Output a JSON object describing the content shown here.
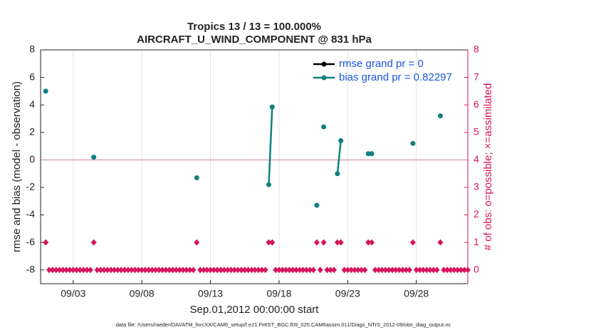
{
  "chart_data": {
    "type": "line",
    "title": "Tropics 13 / 13 = 100.000%",
    "subtitle": "AIRCRAFT_U_WIND_COMPONENT @ 831 hPa",
    "xlabel": "Sep.01,2012 00:00:00 start",
    "ylabel": "rmse and bias (model - observation)",
    "y2label": "# of obs: o=possible; ×=assimilated",
    "footnote": "data file: /Users/raeder/DAI/ATM_forcXX/CAM6_setup/f.e21.FHIST_BGC.f09_025.CAM6assim.011/Diags_NTrS_2012-09/obs_diag_output.nc",
    "xlim": [
      -0.375,
      30.75
    ],
    "xticks": [
      {
        "value": 2,
        "label": "09/03"
      },
      {
        "value": 7,
        "label": "09/08"
      },
      {
        "value": 12,
        "label": "09/13"
      },
      {
        "value": 17,
        "label": "09/18"
      },
      {
        "value": 22,
        "label": "09/23"
      },
      {
        "value": 27,
        "label": "09/28"
      }
    ],
    "ylim": [
      -9,
      8
    ],
    "yticks": [
      -8,
      -6,
      -4,
      -2,
      0,
      2,
      4,
      6,
      8
    ],
    "y2lim": [
      -0.5,
      8
    ],
    "y2ticks": [
      0,
      1,
      2,
      3,
      4,
      5,
      6,
      7,
      8
    ],
    "legend": "upper right",
    "series": [
      {
        "name": "rmse grand pr = 0",
        "color": "#000000",
        "x": [],
        "values": []
      },
      {
        "name": "bias grand pr = 0.82297",
        "color": "#0f8080",
        "x": [
          0,
          3.5,
          11,
          16.25,
          16.5,
          19.75,
          20.25,
          21.25,
          21.5,
          23.5,
          23.75,
          26.75,
          28.75
        ],
        "values": [
          5.0,
          0.2,
          -1.3,
          -1.8,
          3.85,
          -3.3,
          2.4,
          -1.0,
          1.4,
          0.45,
          0.45,
          1.2,
          3.2
        ]
      },
      {
        "color": "#d6155c",
        "axis": "y2",
        "x": [
          0,
          0.25,
          0.5,
          0.75,
          1,
          1.25,
          1.5,
          1.75,
          2,
          2.25,
          2.5,
          2.75,
          3,
          3.25,
          3.5,
          3.75,
          4,
          4.25,
          4.5,
          4.75,
          5,
          5.25,
          5.5,
          5.75,
          6,
          6.25,
          6.5,
          6.75,
          7,
          7.25,
          7.5,
          7.75,
          8,
          8.25,
          8.5,
          8.75,
          9,
          9.25,
          9.5,
          9.75,
          10,
          10.25,
          10.5,
          10.75,
          11,
          11.25,
          11.5,
          11.75,
          12,
          12.25,
          12.5,
          12.75,
          13,
          13.25,
          13.5,
          13.75,
          14,
          14.25,
          14.5,
          14.75,
          15,
          15.25,
          15.5,
          15.75,
          16,
          16.25,
          16.5,
          16.75,
          17,
          17.25,
          17.5,
          17.75,
          18,
          18.25,
          18.5,
          18.75,
          19,
          19.25,
          19.5,
          19.75,
          20,
          20.25,
          20.5,
          20.75,
          21,
          21.25,
          21.5,
          21.75,
          22,
          22.25,
          22.5,
          22.75,
          23,
          23.25,
          23.5,
          23.75,
          24,
          24.25,
          24.5,
          24.75,
          25,
          25.25,
          25.5,
          25.75,
          26,
          26.25,
          26.5,
          26.75,
          27,
          27.25,
          27.5,
          27.75,
          28,
          28.25,
          28.5,
          28.75,
          29,
          29.25,
          29.5,
          29.75,
          30,
          30.25,
          30.5,
          30.75
        ],
        "values": [
          1,
          0,
          0,
          0,
          0,
          0,
          0,
          0,
          0,
          0,
          0,
          0,
          0,
          0,
          1,
          0,
          0,
          0,
          0,
          0,
          0,
          0,
          0,
          0,
          0,
          0,
          0,
          0,
          0,
          0,
          0,
          0,
          0,
          0,
          0,
          0,
          0,
          0,
          0,
          0,
          0,
          0,
          0,
          0,
          1,
          0,
          0,
          0,
          0,
          0,
          0,
          0,
          0,
          0,
          0,
          0,
          0,
          0,
          0,
          0,
          0,
          0,
          0,
          0,
          0,
          1,
          1,
          0,
          0,
          0,
          0,
          0,
          0,
          0,
          0,
          0,
          0,
          0,
          0,
          1,
          0,
          1,
          0,
          0,
          0,
          1,
          1,
          0,
          0,
          0,
          0,
          0,
          0,
          0,
          1,
          1,
          0,
          0,
          0,
          0,
          0,
          0,
          0,
          0,
          0,
          0,
          0,
          1,
          0,
          0,
          0,
          0,
          0,
          0,
          0,
          1,
          0,
          0,
          0,
          0,
          0,
          0,
          0,
          0
        ]
      }
    ]
  }
}
